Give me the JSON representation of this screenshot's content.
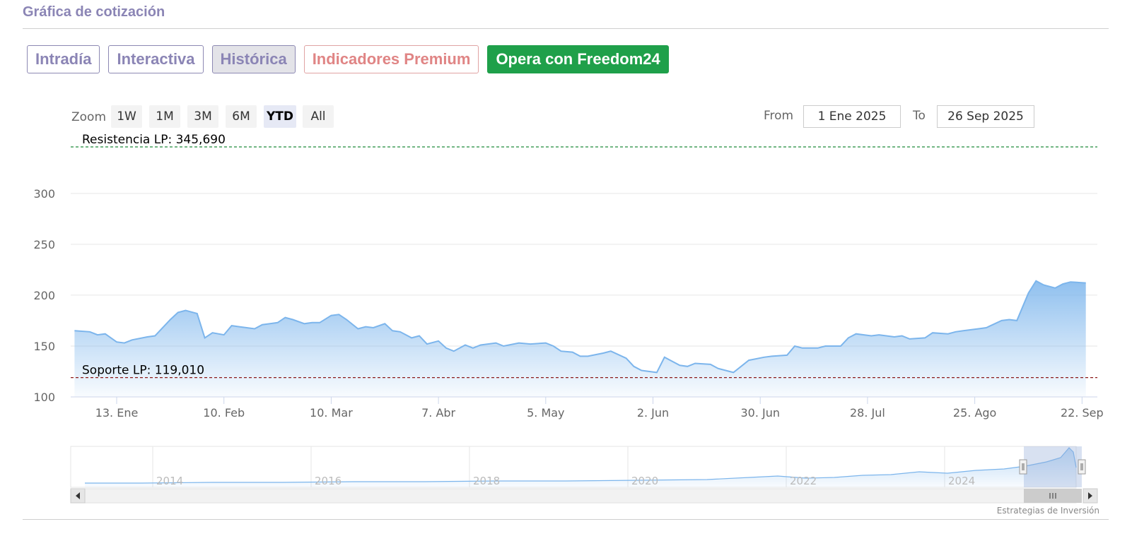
{
  "header": {
    "title": "Gráfica de cotización"
  },
  "tabs": [
    {
      "label": "Intradía",
      "style": "plain"
    },
    {
      "label": "Interactiva",
      "style": "plain"
    },
    {
      "label": "Histórica",
      "style": "active"
    },
    {
      "label": "Indicadores Premium",
      "style": "premium"
    },
    {
      "label": "Opera con Freedom24",
      "style": "cta"
    }
  ],
  "zoom": {
    "label": "Zoom",
    "options": [
      "1W",
      "1M",
      "3M",
      "6M",
      "YTD",
      "All"
    ],
    "selected": "YTD"
  },
  "range": {
    "from_label": "From",
    "from_value": "1 Ene 2025",
    "to_label": "To",
    "to_value": "26 Sep 2025"
  },
  "credit": "Estrategias de Inversión",
  "colors": {
    "line": "#7cb5ec",
    "resistance": "#1f8a3a",
    "support": "#8b1a1a",
    "brand": "#8b85b5",
    "cta": "#1fa04a"
  },
  "chart_data": {
    "type": "area",
    "x_unit": "date",
    "ylim": [
      100,
      345.69
    ],
    "yticks": [
      100,
      150,
      200,
      250,
      300
    ],
    "xticks": [
      {
        "date": "2025-01-13",
        "label": "13. Ene"
      },
      {
        "date": "2025-02-10",
        "label": "10. Feb"
      },
      {
        "date": "2025-03-10",
        "label": "10. Mar"
      },
      {
        "date": "2025-04-07",
        "label": "7. Abr"
      },
      {
        "date": "2025-05-05",
        "label": "5. May"
      },
      {
        "date": "2025-06-02",
        "label": "2. Jun"
      },
      {
        "date": "2025-06-30",
        "label": "30. Jun"
      },
      {
        "date": "2025-07-28",
        "label": "28. Jul"
      },
      {
        "date": "2025-08-25",
        "label": "25. Ago"
      },
      {
        "date": "2025-09-22",
        "label": "22. Sep"
      }
    ],
    "reference_lines": [
      {
        "label": "Resistencia LP: 345,690",
        "value": 345.69,
        "kind": "resistance"
      },
      {
        "label": "Soporte LP: 119,010",
        "value": 119.01,
        "kind": "support"
      }
    ],
    "series": [
      {
        "points": [
          [
            "2025-01-02",
            165
          ],
          [
            "2025-01-06",
            164
          ],
          [
            "2025-01-08",
            161
          ],
          [
            "2025-01-10",
            162
          ],
          [
            "2025-01-13",
            154
          ],
          [
            "2025-01-15",
            153
          ],
          [
            "2025-01-17",
            156
          ],
          [
            "2025-01-21",
            159
          ],
          [
            "2025-01-23",
            160
          ],
          [
            "2025-01-27",
            176
          ],
          [
            "2025-01-29",
            183
          ],
          [
            "2025-01-31",
            185
          ],
          [
            "2025-02-03",
            182
          ],
          [
            "2025-02-05",
            158
          ],
          [
            "2025-02-07",
            163
          ],
          [
            "2025-02-10",
            161
          ],
          [
            "2025-02-12",
            170
          ],
          [
            "2025-02-14",
            169
          ],
          [
            "2025-02-18",
            167
          ],
          [
            "2025-02-20",
            171
          ],
          [
            "2025-02-24",
            173
          ],
          [
            "2025-02-26",
            178
          ],
          [
            "2025-02-28",
            176
          ],
          [
            "2025-03-03",
            172
          ],
          [
            "2025-03-05",
            173
          ],
          [
            "2025-03-07",
            173
          ],
          [
            "2025-03-10",
            180
          ],
          [
            "2025-03-12",
            181
          ],
          [
            "2025-03-14",
            176
          ],
          [
            "2025-03-17",
            167
          ],
          [
            "2025-03-19",
            169
          ],
          [
            "2025-03-21",
            168
          ],
          [
            "2025-03-24",
            172
          ],
          [
            "2025-03-26",
            165
          ],
          [
            "2025-03-28",
            164
          ],
          [
            "2025-03-31",
            158
          ],
          [
            "2025-04-02",
            160
          ],
          [
            "2025-04-04",
            152
          ],
          [
            "2025-04-07",
            155
          ],
          [
            "2025-04-09",
            148
          ],
          [
            "2025-04-11",
            145
          ],
          [
            "2025-04-14",
            151
          ],
          [
            "2025-04-16",
            148
          ],
          [
            "2025-04-18",
            151
          ],
          [
            "2025-04-22",
            153
          ],
          [
            "2025-04-24",
            150
          ],
          [
            "2025-04-28",
            153
          ],
          [
            "2025-05-01",
            152
          ],
          [
            "2025-05-05",
            153
          ],
          [
            "2025-05-07",
            150
          ],
          [
            "2025-05-09",
            145
          ],
          [
            "2025-05-12",
            144
          ],
          [
            "2025-05-14",
            140
          ],
          [
            "2025-05-16",
            140
          ],
          [
            "2025-05-20",
            143
          ],
          [
            "2025-05-22",
            145
          ],
          [
            "2025-05-26",
            138
          ],
          [
            "2025-05-28",
            130
          ],
          [
            "2025-05-30",
            126
          ],
          [
            "2025-06-03",
            124
          ],
          [
            "2025-06-05",
            139
          ],
          [
            "2025-06-09",
            131
          ],
          [
            "2025-06-11",
            130
          ],
          [
            "2025-06-13",
            133
          ],
          [
            "2025-06-17",
            132
          ],
          [
            "2025-06-19",
            128
          ],
          [
            "2025-06-23",
            124
          ],
          [
            "2025-06-25",
            130
          ],
          [
            "2025-06-27",
            136
          ],
          [
            "2025-07-01",
            139
          ],
          [
            "2025-07-03",
            140
          ],
          [
            "2025-07-07",
            141
          ],
          [
            "2025-07-09",
            150
          ],
          [
            "2025-07-11",
            148
          ],
          [
            "2025-07-15",
            148
          ],
          [
            "2025-07-17",
            150
          ],
          [
            "2025-07-21",
            150
          ],
          [
            "2025-07-23",
            158
          ],
          [
            "2025-07-25",
            162
          ],
          [
            "2025-07-29",
            160
          ],
          [
            "2025-07-31",
            161
          ],
          [
            "2025-08-04",
            159
          ],
          [
            "2025-08-06",
            160
          ],
          [
            "2025-08-08",
            157
          ],
          [
            "2025-08-12",
            158
          ],
          [
            "2025-08-14",
            163
          ],
          [
            "2025-08-18",
            162
          ],
          [
            "2025-08-20",
            164
          ],
          [
            "2025-08-22",
            165
          ],
          [
            "2025-08-26",
            167
          ],
          [
            "2025-08-28",
            168
          ],
          [
            "2025-09-01",
            175
          ],
          [
            "2025-09-03",
            176
          ],
          [
            "2025-09-05",
            175
          ],
          [
            "2025-09-08",
            202
          ],
          [
            "2025-09-10",
            214
          ],
          [
            "2025-09-12",
            210
          ],
          [
            "2025-09-15",
            207
          ],
          [
            "2025-09-17",
            211
          ],
          [
            "2025-09-19",
            213
          ],
          [
            "2025-09-23",
            212
          ]
        ]
      }
    ]
  }
}
